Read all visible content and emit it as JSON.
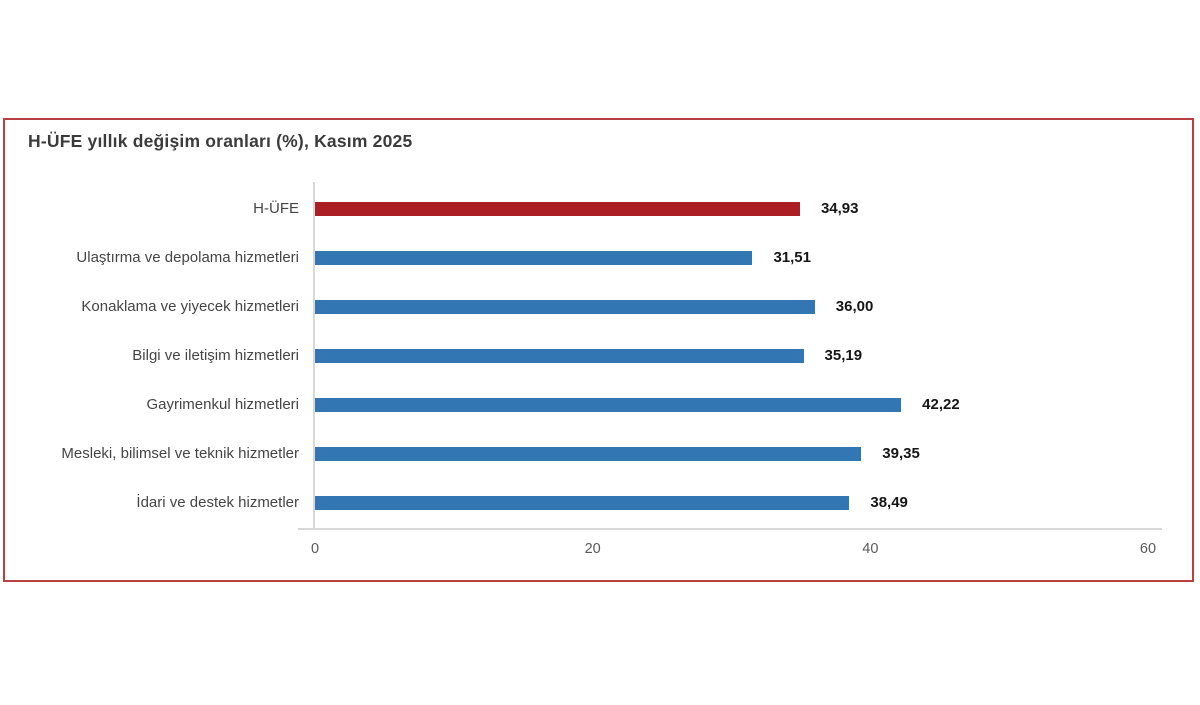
{
  "chart_data": {
    "type": "bar",
    "orientation": "horizontal",
    "title": "H-ÜFE yıllık değişim oranları (%), Kasım 2025",
    "categories": [
      "H-ÜFE",
      "Ulaştırma ve depolama hizmetleri",
      "Konaklama ve yiyecek hizmetleri",
      "Bilgi ve iletişim hizmetleri",
      "Gayrimenkul hizmetleri",
      "Mesleki, bilimsel ve teknik hizmetler",
      "İdari ve destek hizmetler"
    ],
    "values": [
      34.93,
      31.51,
      36.0,
      35.19,
      42.22,
      39.35,
      38.49
    ],
    "value_labels": [
      "34,93",
      "31,51",
      "36,00",
      "35,19",
      "42,22",
      "39,35",
      "38,49"
    ],
    "xlim": [
      0,
      60
    ],
    "x_ticks": [
      "0",
      "20",
      "40",
      "60"
    ],
    "grid": "off",
    "legend": "none",
    "bar_color": "#3277b3",
    "highlight_color": "#ab1e24",
    "highlight_index": 0
  },
  "colors": {
    "frame_border": "#b84040",
    "axis_line": "#d8d8d8",
    "title_text": "#3b3b3b",
    "category_text": "#454545",
    "value_text": "#161616",
    "tick_text": "#595959",
    "background": "#ffffff"
  }
}
